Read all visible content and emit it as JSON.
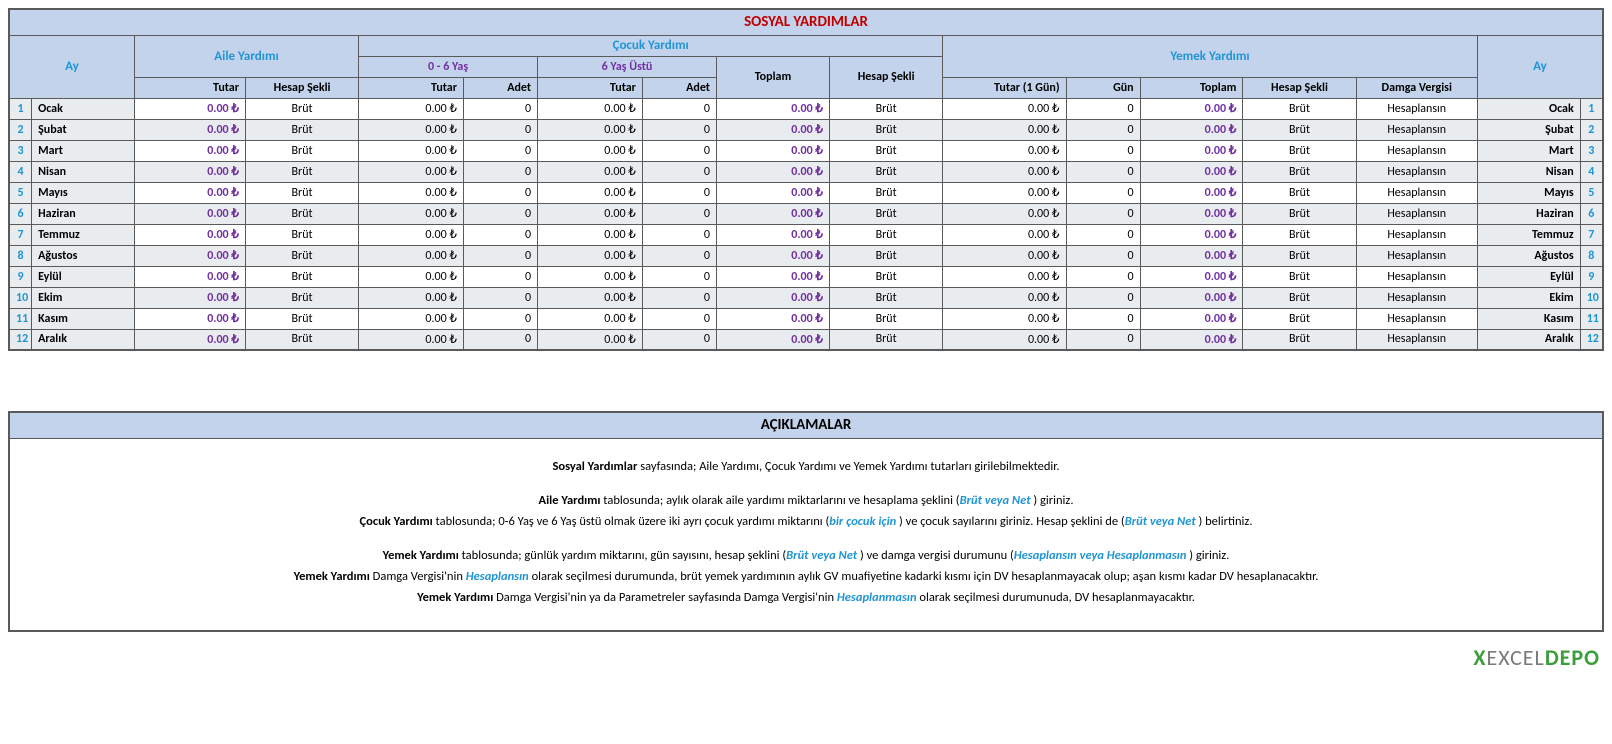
{
  "title": "SOSYAL YARDIMLAR",
  "headers": {
    "ay": "Ay",
    "aile": "Aile Yardımı",
    "cocuk": "Çocuk Yardımı",
    "yas06": "0 - 6 Yaş",
    "yas6u": "6 Yaş Üstü",
    "toplam": "Toplam",
    "hesap": "Hesap Şekli",
    "yemek": "Yemek Yardımı",
    "tutar": "Tutar",
    "adet": "Adet",
    "tutar1g": "Tutar (1 Gün)",
    "gun": "Gün",
    "damga": "Damga Vergisi"
  },
  "money": "0.00 ₺",
  "zero": "0",
  "brut": "Brüt",
  "hesaplansin": "Hesaplansın",
  "months": [
    "Ocak",
    "Şubat",
    "Mart",
    "Nisan",
    "Mayıs",
    "Haziran",
    "Temmuz",
    "Ağustos",
    "Eylül",
    "Ekim",
    "Kasım",
    "Aralık"
  ],
  "desc": {
    "title": "AÇIKLAMALAR",
    "p1a": "Sosyal Yardımlar",
    "p1b": " sayfasında; Aile Yardımı, Çocuk Yardımı ve Yemek Yardımı tutarları girilebilmektedir.",
    "p2a": "Aile Yardımı",
    "p2b": " tablosunda; aylık olarak aile yardımı miktarlarını ve hesaplama şeklini (",
    "p2c": "Brüt veya Net",
    "p2d": " ) giriniz.",
    "p3a": "Çocuk Yardımı",
    "p3b": " tablosunda; 0-6 Yaş ve 6 Yaş üstü olmak üzere iki ayrı çocuk yardımı miktarını (",
    "p3c": "bir çocuk için",
    "p3d": " ) ve çocuk sayılarını giriniz. Hesap şeklini de (",
    "p3e": "Brüt veya Net",
    "p3f": " ) belirtiniz.",
    "p4a": "Yemek Yardımı",
    "p4b": " tablosunda; günlük yardım miktarını, gün sayısını, hesap şeklini (",
    "p4c": "Brüt veya Net",
    "p4d": " ) ve damga vergisi durumunu (",
    "p4e": "Hesaplansın veya Hesaplanmasın",
    "p4f": " ) giriniz.",
    "p5a": "Yemek Yardımı",
    "p5b": " Damga Vergisi'nin ",
    "p5c": "Hesaplansın",
    "p5d": "  olarak seçilmesi durumunda, brüt yemek yardımının aylık GV muafiyetine kadarki kısmı için DV hesaplanmayacak olup; aşan kısmı kadar DV hesaplanacaktır.",
    "p6a": "Yemek Yardımı",
    "p6b": " Damga Vergisi'nin ya da Parametreler sayfasında Damga Vergisi'nin ",
    "p6c": "Hesaplanmasın",
    "p6d": "  olarak seçilmesi durumunuda, DV hesaplanmayacaktır."
  },
  "logo": {
    "x": "X",
    "excel": "EXCEL",
    "depo": "DEPO"
  }
}
